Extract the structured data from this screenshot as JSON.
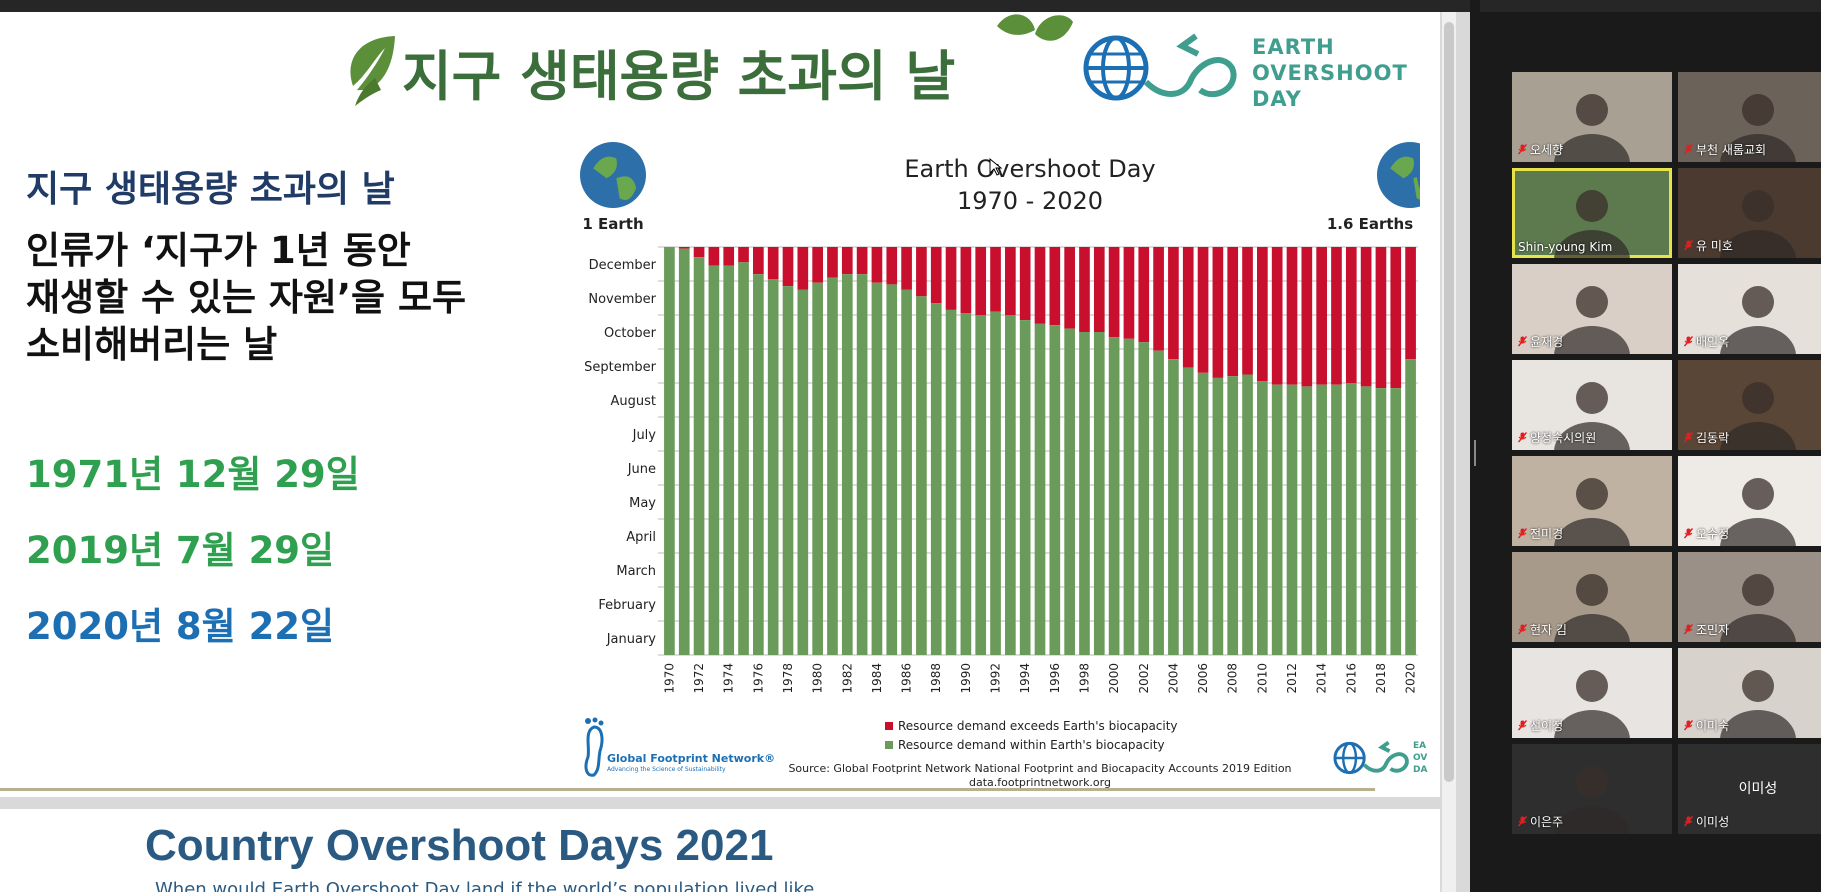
{
  "slide1": {
    "title": "지구 생태용량 초과의 날",
    "logo": {
      "line1": "EARTH",
      "line2": "OVERSHOOT",
      "line3": "DAY"
    },
    "left_heading": "지구 생태용량 초과의 날",
    "left_lines": [
      "인류가 ‘지구가 1년 동안",
      "재생할 수 있는 자원’을 모두",
      "소비해버리는 날"
    ],
    "dates": [
      "1971년 12월 29일",
      "2019년   7월 29일",
      "2020년   8월 22일"
    ],
    "gfn_name": "Global Footprint Network®",
    "gfn_tagline": "Advancing the Science of Sustainability",
    "logo_small": {
      "line1": "EA",
      "line2": "OV",
      "line3": "DA"
    }
  },
  "chart_data": {
    "type": "bar",
    "title": "Earth Overshoot Day",
    "subtitle": "1970 - 2020",
    "left_label": "1 Earth",
    "right_label": "1.6 Earths",
    "y_ticks": [
      "January",
      "February",
      "March",
      "April",
      "May",
      "June",
      "July",
      "August",
      "September",
      "October",
      "November",
      "December"
    ],
    "x_ticks": [
      "1970",
      "1972",
      "1974",
      "1976",
      "1978",
      "1980",
      "1982",
      "1984",
      "1986",
      "1988",
      "1990",
      "1992",
      "1994",
      "1996",
      "1998",
      "2000",
      "2002",
      "2004",
      "2006",
      "2008",
      "2010",
      "2012",
      "2014",
      "2016",
      "2018",
      "2020"
    ],
    "years": [
      1970,
      1971,
      1972,
      1973,
      1974,
      1975,
      1976,
      1977,
      1978,
      1979,
      1980,
      1981,
      1982,
      1983,
      1984,
      1985,
      1986,
      1987,
      1988,
      1989,
      1990,
      1991,
      1992,
      1993,
      1994,
      1995,
      1996,
      1997,
      1998,
      1999,
      2000,
      2001,
      2002,
      2003,
      2004,
      2005,
      2006,
      2007,
      2008,
      2009,
      2010,
      2011,
      2012,
      2013,
      2014,
      2015,
      2016,
      2017,
      2018,
      2019,
      2020
    ],
    "overshoot_month": [
      12.0,
      11.95,
      11.7,
      11.45,
      11.45,
      11.55,
      11.2,
      11.05,
      10.85,
      10.75,
      10.95,
      11.1,
      11.2,
      11.2,
      10.95,
      10.9,
      10.75,
      10.55,
      10.35,
      10.15,
      10.05,
      10.0,
      10.1,
      10.0,
      9.85,
      9.75,
      9.7,
      9.6,
      9.5,
      9.5,
      9.35,
      9.3,
      9.2,
      8.95,
      8.7,
      8.45,
      8.3,
      8.15,
      8.2,
      8.25,
      8.05,
      7.95,
      7.95,
      7.9,
      7.95,
      7.95,
      8.0,
      7.9,
      7.85,
      7.85,
      8.7
    ],
    "series": [
      {
        "name": "Resource demand exceeds Earth's biocapacity",
        "color": "#c8102e"
      },
      {
        "name": "Resource demand within Earth's biocapacity",
        "color": "#6b9b5a"
      }
    ],
    "source": "Source: Global Footprint Network National Footprint and Biocapacity Accounts 2019 Edition",
    "source_url": "data.footprintnetwork.org"
  },
  "slide2": {
    "title": "Country Overshoot Days 2021",
    "subtitle": "When would Earth Overshoot Day land if the world’s population lived like..."
  },
  "participants": [
    {
      "name": "오세향",
      "muted": true,
      "bg": "#a9a094"
    },
    {
      "name": "부천 새롬교회",
      "muted": true,
      "bg": "#6b625a"
    },
    {
      "name": "Shin-young Kim",
      "muted": false,
      "active": true,
      "bg": "#5d7a4f"
    },
    {
      "name": "유 미호",
      "muted": true,
      "bg": "#4a3a30"
    },
    {
      "name": "윤재경",
      "muted": true,
      "bg": "#d9cfc6"
    },
    {
      "name": "배인옥",
      "muted": true,
      "bg": "#e5e0da"
    },
    {
      "name": "양정숙시의원",
      "muted": true,
      "bg": "#e8e4e0"
    },
    {
      "name": "김동락",
      "muted": true,
      "bg": "#5a4636"
    },
    {
      "name": "전미경",
      "muted": true,
      "bg": "#bfb2a2"
    },
    {
      "name": "오수정",
      "muted": true,
      "bg": "#eeeae6"
    },
    {
      "name": "현자 김",
      "muted": true,
      "bg": "#a89a8b"
    },
    {
      "name": "조민자",
      "muted": true,
      "bg": "#9a9088"
    },
    {
      "name": "선이정",
      "muted": true,
      "bg": "#e8e4e2"
    },
    {
      "name": "이미숙",
      "muted": true,
      "bg": "#d8d2cc"
    },
    {
      "name": "이은주",
      "muted": true,
      "bg": "#2e2e2e"
    },
    {
      "name": "이미성",
      "muted": true,
      "bg": "#2e2e2e",
      "no_video": true
    }
  ]
}
